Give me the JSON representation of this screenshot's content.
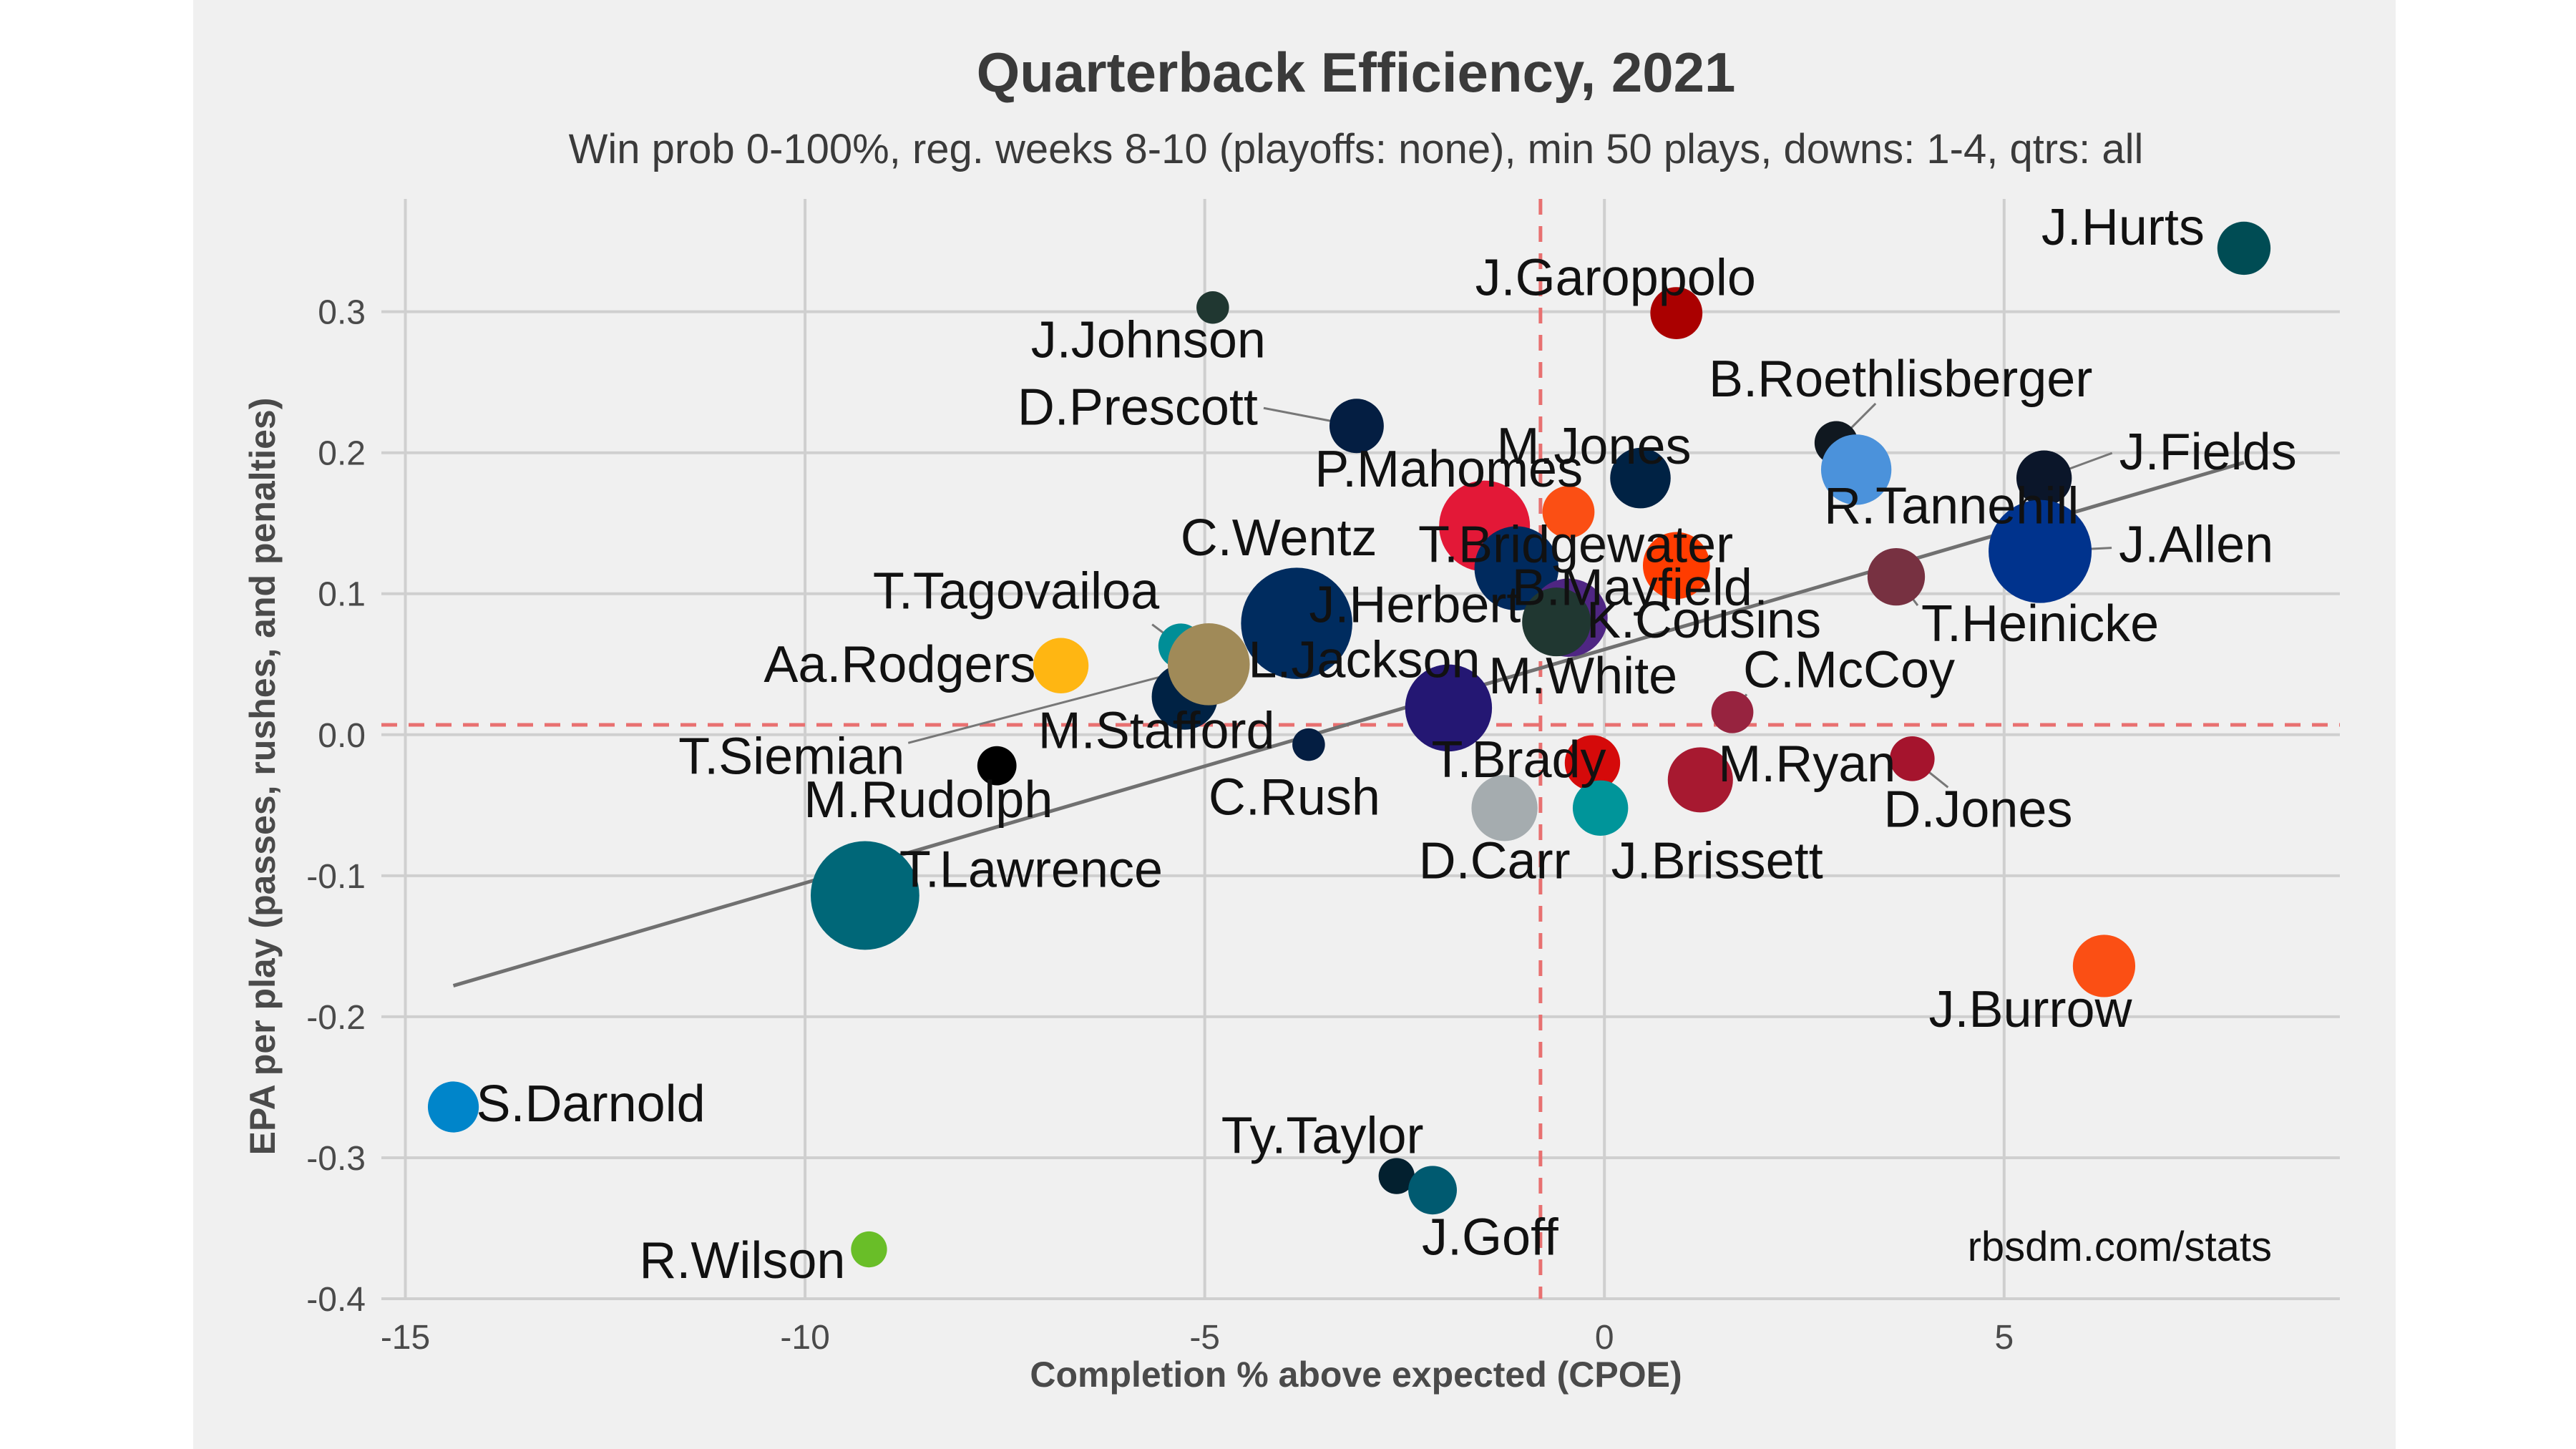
{
  "chart_data": {
    "type": "scatter",
    "title": "Quarterback Efficiency, 2021",
    "subtitle": "Win prob 0-100%, reg. weeks 8-10 (playoffs: none), min 50 plays, downs: 1-4, qtrs: all",
    "xlabel": "Completion % above expected (CPOE)",
    "ylabel": "EPA per play (passes, rushes, and penalties)",
    "xlim": [
      -15.3,
      9.2
    ],
    "ylim": [
      -0.4,
      0.38
    ],
    "xticks": [
      -15,
      -10,
      -5,
      0,
      5
    ],
    "xtick_labels": [
      "-15",
      "-10",
      "-5",
      "0",
      "5"
    ],
    "yticks": [
      -0.4,
      -0.3,
      -0.2,
      -0.1,
      0.0,
      0.1,
      0.2,
      0.3
    ],
    "ytick_labels": [
      "-0.4",
      "-0.3",
      "-0.2",
      "-0.1",
      "0.0",
      "0.1",
      "0.2",
      "0.3"
    ],
    "grid": true,
    "reference_lines": {
      "mean_x": -0.8,
      "mean_y": 0.007,
      "color": "#e87070"
    },
    "trend_line": {
      "x": [
        -14.4,
        8.0
      ],
      "y": [
        -0.178,
        0.193
      ],
      "color": "#707070"
    },
    "credit": "rbsdm.com/stats",
    "points": [
      {
        "label": "J.Hurts",
        "x": 8.0,
        "y": 0.345,
        "size": 240,
        "color": "#004c54"
      },
      {
        "label": "J.Garoppolo",
        "x": 0.9,
        "y": 0.299,
        "size": 230,
        "color": "#aa0000"
      },
      {
        "label": "J.Johnson",
        "x": -4.9,
        "y": 0.303,
        "size": 90,
        "color": "#203731"
      },
      {
        "label": "D.Prescott",
        "x": -3.1,
        "y": 0.219,
        "size": 250,
        "color": "#041e42"
      },
      {
        "label": "B.Roethlisberger",
        "x": 2.9,
        "y": 0.207,
        "size": 160,
        "color": "#101820"
      },
      {
        "label": "M.Jones",
        "x": 0.45,
        "y": 0.182,
        "size": 310,
        "color": "#002244"
      },
      {
        "label": "R.Tannehill",
        "x": 3.15,
        "y": 0.188,
        "size": 420,
        "color": "#4b92db"
      },
      {
        "label": "J.Fields",
        "x": 5.5,
        "y": 0.182,
        "size": 260,
        "color": "#0b162a"
      },
      {
        "label": "P.Mahomes",
        "x": -1.5,
        "y": 0.148,
        "size": 700,
        "color": "#e31837"
      },
      {
        "label": "T.Bridgewater",
        "x": -0.45,
        "y": 0.158,
        "size": 230,
        "color": "#fb4f14"
      },
      {
        "label": "B.Mayfield",
        "x": 0.9,
        "y": 0.12,
        "size": 380,
        "color": "#ff3c00"
      },
      {
        "label": "J.Allen",
        "x": 5.45,
        "y": 0.13,
        "size": 900,
        "color": "#00338d"
      },
      {
        "label": "T.Heinicke",
        "x": 3.65,
        "y": 0.112,
        "size": 280,
        "color": "#773141"
      },
      {
        "label": "C.Wentz",
        "x": -3.85,
        "y": 0.079,
        "size": 1050,
        "color": "#002c5f"
      },
      {
        "label": "J.Herbert",
        "x": -1.1,
        "y": 0.118,
        "size": 600,
        "color": "#002a5e"
      },
      {
        "label": "K.Cousins",
        "x": -0.45,
        "y": 0.083,
        "size": 520,
        "color": "#4f2683"
      },
      {
        "label": "M.White",
        "x": -0.6,
        "y": 0.08,
        "size": 400,
        "color": "#203731"
      },
      {
        "label": "T.Tagovailoa",
        "x": -5.3,
        "y": 0.063,
        "size": 170,
        "color": "#008e97"
      },
      {
        "label": "Aa.Rodgers",
        "x": -6.8,
        "y": 0.049,
        "size": 260,
        "color": "#ffb612"
      },
      {
        "label": "M.Stafford",
        "x": -5.25,
        "y": 0.027,
        "size": 370,
        "color": "#002244"
      },
      {
        "label": "T.Siemian",
        "x": -4.95,
        "y": 0.05,
        "size": 570,
        "color": "#a08a58"
      },
      {
        "label": "L.Jackson",
        "x": -1.95,
        "y": 0.019,
        "size": 640,
        "color": "#241773"
      },
      {
        "label": "C.Rush",
        "x": -3.7,
        "y": -0.007,
        "size": 90,
        "color": "#041e42"
      },
      {
        "label": "M.Rudolph",
        "x": -7.6,
        "y": -0.022,
        "size": 130,
        "color": "#000000"
      },
      {
        "label": "C.McCoy",
        "x": 1.6,
        "y": 0.016,
        "size": 150,
        "color": "#97233f"
      },
      {
        "label": "T.Brady",
        "x": -0.15,
        "y": -0.02,
        "size": 260,
        "color": "#d50a0a"
      },
      {
        "label": "M.Ryan",
        "x": 1.2,
        "y": -0.032,
        "size": 360,
        "color": "#a71930"
      },
      {
        "label": "D.Jones",
        "x": 3.85,
        "y": -0.017,
        "size": 170,
        "color": "#a5142d"
      },
      {
        "label": "D.Carr",
        "x": -1.25,
        "y": -0.052,
        "size": 370,
        "color": "#a5acaf"
      },
      {
        "label": "J.Brissett",
        "x": -0.05,
        "y": -0.052,
        "size": 260,
        "color": "#00959a"
      },
      {
        "label": "T.Lawrence",
        "x": -9.25,
        "y": -0.114,
        "size": 1000,
        "color": "#006778"
      },
      {
        "label": "J.Burrow",
        "x": 6.25,
        "y": -0.164,
        "size": 330,
        "color": "#fb4f14"
      },
      {
        "label": "S.Darnold",
        "x": -14.4,
        "y": -0.264,
        "size": 220,
        "color": "#0085ca"
      },
      {
        "label": "Ty.Taylor",
        "x": -2.6,
        "y": -0.313,
        "size": 110,
        "color": "#03202f"
      },
      {
        "label": "J.Goff",
        "x": -2.15,
        "y": -0.323,
        "size": 200,
        "color": "#005a70"
      },
      {
        "label": "R.Wilson",
        "x": -9.2,
        "y": -0.365,
        "size": 110,
        "color": "#69be28"
      }
    ]
  }
}
